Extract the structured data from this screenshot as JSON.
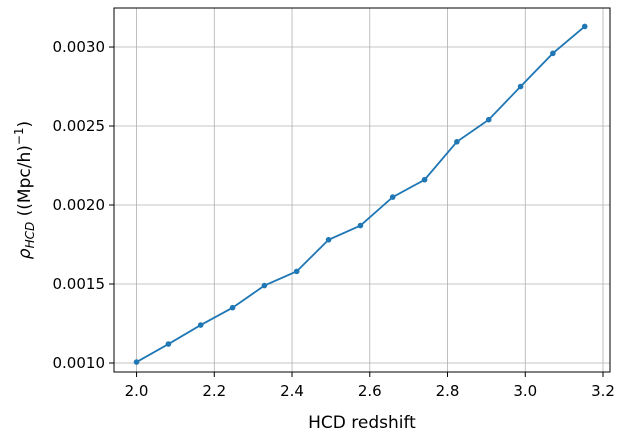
{
  "chart_data": {
    "type": "line",
    "x_label": "HCD redshift",
    "y_label": {
      "symbol": "ρ",
      "subscript": "HCD",
      "unit_open": " ((Mpc/h)",
      "superscript": "−1",
      "unit_close": ")"
    },
    "x": [
      2.0,
      2.082,
      2.165,
      2.247,
      2.329,
      2.412,
      2.494,
      2.576,
      2.659,
      2.741,
      2.824,
      2.906,
      2.988,
      3.071,
      3.153
    ],
    "series": [
      {
        "color": "#1f77b4",
        "values": [
          0.001006,
          0.00112,
          0.00124,
          0.00135,
          0.00149,
          0.00158,
          0.00178,
          0.00187,
          0.00205,
          0.00216,
          0.0024,
          0.00254,
          0.00275,
          0.00296,
          0.00313
        ]
      }
    ],
    "xlim": [
      1.942,
      3.218
    ],
    "ylim": [
      0.000943,
      0.003247
    ],
    "xticks": [
      {
        "value": 2.0,
        "label": "2.0"
      },
      2.2,
      2.4,
      2.6,
      2.8,
      {
        "value": 3.0,
        "label": "3.0"
      },
      3.2
    ],
    "yticks": [
      {
        "value": 0.001,
        "label": "0.0010"
      },
      {
        "value": 0.0015,
        "label": "0.0015"
      },
      {
        "value": 0.002,
        "label": "0.0020"
      },
      {
        "value": 0.0025,
        "label": "0.0025"
      },
      {
        "value": 0.003,
        "label": "0.0030"
      }
    ],
    "grid": true
  }
}
